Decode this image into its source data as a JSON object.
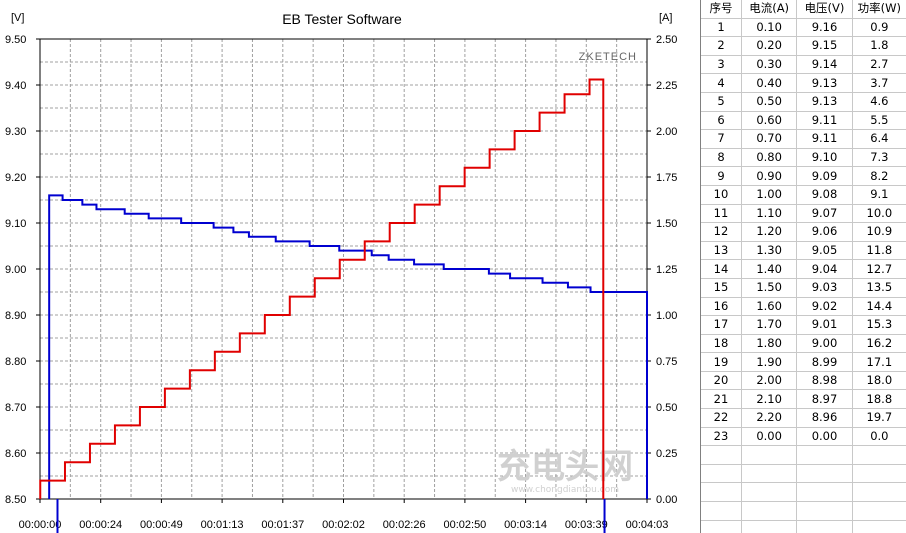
{
  "chart_data": {
    "type": "line",
    "title": "EB Tester Software",
    "brand": "ZKETECH",
    "watermark": "充电头网",
    "watermark_url": "www.chongdiantou.com",
    "left_axis": {
      "unit": "[V]",
      "ylim": [
        8.5,
        9.5
      ],
      "ticks": [
        "9.50",
        "9.40",
        "9.30",
        "9.20",
        "9.10",
        "9.00",
        "8.90",
        "8.80",
        "8.70",
        "8.60",
        "8.50"
      ]
    },
    "right_axis": {
      "unit": "[A]",
      "ylim": [
        0,
        2.5
      ],
      "ticks": [
        "2.50",
        "2.25",
        "2.00",
        "1.75",
        "1.50",
        "1.25",
        "1.00",
        "0.75",
        "0.50",
        "0.25",
        "0.00"
      ]
    },
    "x_axis": {
      "xlim_seconds": [
        0,
        243
      ],
      "ticks": [
        "00:00:00",
        "00:00:24",
        "00:00:49",
        "00:01:13",
        "00:01:37",
        "00:02:02",
        "00:02:26",
        "00:02:50",
        "00:03:14",
        "00:03:39",
        "00:04:03"
      ]
    },
    "grid": true,
    "series": [
      {
        "name": "Voltage",
        "axis": "left",
        "color": "#0000d0",
        "points_seconds_value": [
          [
            6.5,
            8.5
          ],
          [
            6.5,
            9.16
          ],
          [
            16,
            9.16
          ],
          [
            16,
            9.15
          ],
          [
            30,
            9.15
          ],
          [
            30,
            9.14
          ],
          [
            40,
            9.14
          ],
          [
            40,
            9.13
          ],
          [
            60,
            9.13
          ],
          [
            60,
            9.12
          ],
          [
            77,
            9.12
          ],
          [
            77,
            9.11
          ],
          [
            100,
            9.11
          ],
          [
            100,
            9.1
          ],
          [
            123,
            9.1
          ],
          [
            123,
            9.09
          ],
          [
            137,
            9.09
          ],
          [
            137,
            9.08
          ],
          [
            148,
            9.08
          ],
          [
            148,
            9.07
          ],
          [
            167,
            9.07
          ],
          [
            167,
            9.06
          ],
          [
            191,
            9.06
          ],
          [
            191,
            9.05
          ],
          [
            212,
            9.05
          ],
          [
            212,
            9.04
          ],
          [
            235,
            9.04
          ],
          [
            235,
            9.03
          ],
          [
            247,
            9.03
          ],
          [
            247,
            9.02
          ],
          [
            265,
            9.02
          ],
          [
            265,
            9.01
          ],
          [
            286,
            9.01
          ],
          [
            286,
            9.0
          ],
          [
            318,
            9.0
          ],
          [
            318,
            8.99
          ],
          [
            333,
            8.99
          ],
          [
            333,
            8.98
          ],
          [
            356,
            8.98
          ],
          [
            356,
            8.97
          ],
          [
            374,
            8.97
          ],
          [
            374,
            8.96
          ],
          [
            390,
            8.96
          ],
          [
            390,
            8.95
          ],
          [
            430,
            8.95
          ],
          [
            430,
            8.5
          ]
        ]
      },
      {
        "name": "Current",
        "axis": "right",
        "color": "#e00000",
        "points_seconds_value": [
          [
            0.1,
            0.0
          ],
          [
            0.1,
            0.1
          ],
          [
            10,
            0.1
          ],
          [
            10,
            0.2
          ],
          [
            20,
            0.2
          ],
          [
            20,
            0.3
          ],
          [
            30,
            0.3
          ],
          [
            30,
            0.4
          ],
          [
            40,
            0.4
          ],
          [
            40,
            0.5
          ],
          [
            50,
            0.5
          ],
          [
            50,
            0.6
          ],
          [
            60,
            0.6
          ],
          [
            60,
            0.7
          ],
          [
            70,
            0.7
          ],
          [
            70,
            0.8
          ],
          [
            80,
            0.8
          ],
          [
            80,
            0.9
          ],
          [
            90,
            0.9
          ],
          [
            90,
            1.0
          ],
          [
            100,
            1.0
          ],
          [
            100,
            1.1
          ],
          [
            110,
            1.1
          ],
          [
            110,
            1.2
          ],
          [
            120,
            1.2
          ],
          [
            120,
            1.3
          ],
          [
            130,
            1.3
          ],
          [
            130,
            1.4
          ],
          [
            140,
            1.4
          ],
          [
            140,
            1.5
          ],
          [
            150,
            1.5
          ],
          [
            150,
            1.6
          ],
          [
            160,
            1.6
          ],
          [
            160,
            1.7
          ],
          [
            170,
            1.7
          ],
          [
            170,
            1.8
          ],
          [
            180,
            1.8
          ],
          [
            180,
            1.9
          ],
          [
            190,
            1.9
          ],
          [
            190,
            2.0
          ],
          [
            200,
            2.0
          ],
          [
            200,
            2.1
          ],
          [
            210,
            2.1
          ],
          [
            210,
            2.2
          ],
          [
            220,
            2.2
          ],
          [
            220,
            2.28
          ],
          [
            225,
            2.28
          ],
          [
            225,
            2.28
          ],
          [
            225.5,
            2.28
          ],
          [
            225.5,
            0.0
          ]
        ]
      }
    ]
  },
  "table": {
    "headers": [
      "序号",
      "电流(A)",
      "电压(V)",
      "功率(W)"
    ],
    "rows": [
      [
        "1",
        "0.10",
        "9.16",
        "0.9"
      ],
      [
        "2",
        "0.20",
        "9.15",
        "1.8"
      ],
      [
        "3",
        "0.30",
        "9.14",
        "2.7"
      ],
      [
        "4",
        "0.40",
        "9.13",
        "3.7"
      ],
      [
        "5",
        "0.50",
        "9.13",
        "4.6"
      ],
      [
        "6",
        "0.60",
        "9.11",
        "5.5"
      ],
      [
        "7",
        "0.70",
        "9.11",
        "6.4"
      ],
      [
        "8",
        "0.80",
        "9.10",
        "7.3"
      ],
      [
        "9",
        "0.90",
        "9.09",
        "8.2"
      ],
      [
        "10",
        "1.00",
        "9.08",
        "9.1"
      ],
      [
        "11",
        "1.10",
        "9.07",
        "10.0"
      ],
      [
        "12",
        "1.20",
        "9.06",
        "10.9"
      ],
      [
        "13",
        "1.30",
        "9.05",
        "11.8"
      ],
      [
        "14",
        "1.40",
        "9.04",
        "12.7"
      ],
      [
        "15",
        "1.50",
        "9.03",
        "13.5"
      ],
      [
        "16",
        "1.60",
        "9.02",
        "14.4"
      ],
      [
        "17",
        "1.70",
        "9.01",
        "15.3"
      ],
      [
        "18",
        "1.80",
        "9.00",
        "16.2"
      ],
      [
        "19",
        "1.90",
        "8.99",
        "17.1"
      ],
      [
        "20",
        "2.00",
        "8.98",
        "18.0"
      ],
      [
        "21",
        "2.10",
        "8.97",
        "18.8"
      ],
      [
        "22",
        "2.20",
        "8.96",
        "19.7"
      ],
      [
        "23",
        "0.00",
        "0.00",
        "0.0"
      ]
    ],
    "empty_rows": 6
  }
}
